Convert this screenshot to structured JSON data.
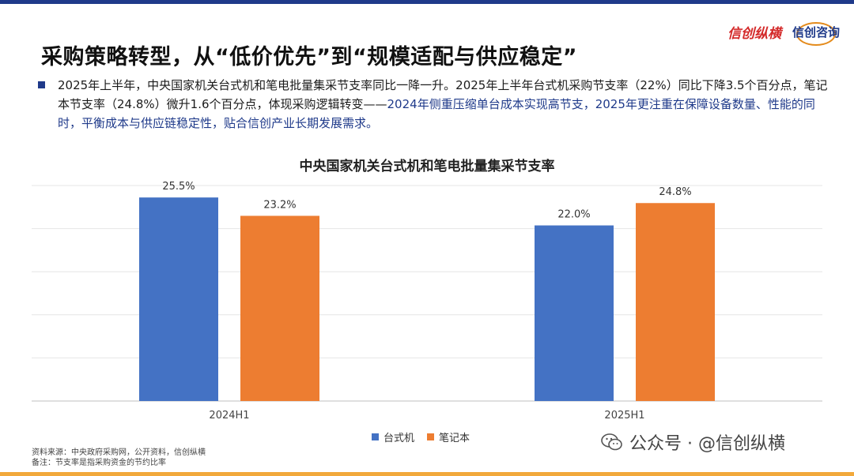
{
  "page_title": "采购策略转型，从“低价优先”到“规模适配与供应稳定”",
  "logos": {
    "logo_1": "信创纵横",
    "logo_2": "信创咨询"
  },
  "bullet": {
    "text_part1": "2025年上半年，中央国家机关台式机和笔电批量集采节支率同比一降一升。2025年上半年台式机采购节支率（22%）同比下降3.5个百分点，笔记本节支率（24.8%）微升1.6个百分点，体现采购逻辑转变——",
    "text_highlight": "2024年侧重压缩单台成本实现高节支，2025年更注重在保障设备数量、性能的同时，平衡成本与供应链稳定性，贴合信创产业长期发展需求。"
  },
  "chart_data": {
    "type": "bar",
    "title": "中央国家机关台式机和笔电批量集采节支率",
    "categories": [
      "2024H1",
      "2025H1"
    ],
    "series": [
      {
        "name": "台式机",
        "values": [
          25.5,
          22.0
        ],
        "labels": [
          "25.5%",
          "22.0%"
        ],
        "color": "#4472c4"
      },
      {
        "name": "笔记本",
        "values": [
          23.2,
          24.8
        ],
        "labels": [
          "23.2%",
          "24.8%"
        ],
        "color": "#ed7d31"
      }
    ],
    "ylim": [
      0,
      27
    ],
    "grid": true,
    "legend": "bottom"
  },
  "notes": {
    "source": "资料来源：中央政府采购网，公开资料，信创纵横",
    "remark": "备注：节支率是指采购资金的节约比率"
  },
  "wechat": {
    "label": "公众号 · @信创纵横"
  }
}
